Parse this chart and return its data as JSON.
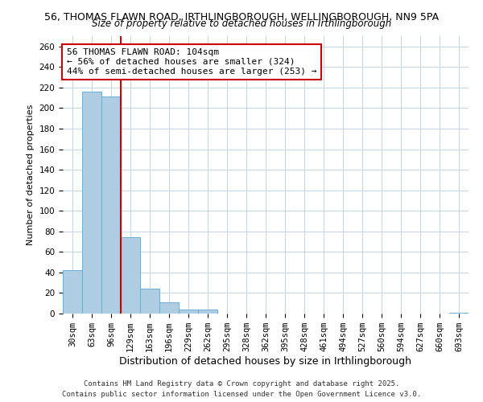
{
  "title_line1": "56, THOMAS FLAWN ROAD, IRTHLINGBOROUGH, WELLINGBOROUGH, NN9 5PA",
  "title_line2": "Size of property relative to detached houses in Irthlingborough",
  "xlabel": "Distribution of detached houses by size in Irthlingborough",
  "ylabel": "Number of detached properties",
  "bin_labels": [
    "30sqm",
    "63sqm",
    "96sqm",
    "129sqm",
    "163sqm",
    "196sqm",
    "229sqm",
    "262sqm",
    "295sqm",
    "328sqm",
    "362sqm",
    "395sqm",
    "428sqm",
    "461sqm",
    "494sqm",
    "527sqm",
    "560sqm",
    "594sqm",
    "627sqm",
    "660sqm",
    "693sqm"
  ],
  "bar_values": [
    42,
    216,
    211,
    74,
    24,
    11,
    4,
    4,
    0,
    0,
    0,
    0,
    0,
    0,
    0,
    0,
    0,
    0,
    0,
    0,
    1
  ],
  "bar_color": "#aecde3",
  "bar_edge_color": "#6baed6",
  "vline_color": "#cc0000",
  "vline_x": 2.5,
  "annotation_text": "56 THOMAS FLAWN ROAD: 104sqm\n← 56% of detached houses are smaller (324)\n44% of semi-detached houses are larger (253) →",
  "annotation_box_color": "#ffffff",
  "annotation_border_color": "#cc0000",
  "ylim": [
    0,
    270
  ],
  "yticks": [
    0,
    20,
    40,
    60,
    80,
    100,
    120,
    140,
    160,
    180,
    200,
    220,
    240,
    260
  ],
  "footnote_line1": "Contains HM Land Registry data © Crown copyright and database right 2025.",
  "footnote_line2": "Contains public sector information licensed under the Open Government Licence v3.0.",
  "background_color": "#ffffff",
  "grid_color": "#c8d8e8",
  "title1_fontsize": 9,
  "title2_fontsize": 8.5,
  "ylabel_fontsize": 8,
  "xlabel_fontsize": 9,
  "tick_fontsize": 7.5,
  "annot_fontsize": 8,
  "footnote_fontsize": 6.5
}
